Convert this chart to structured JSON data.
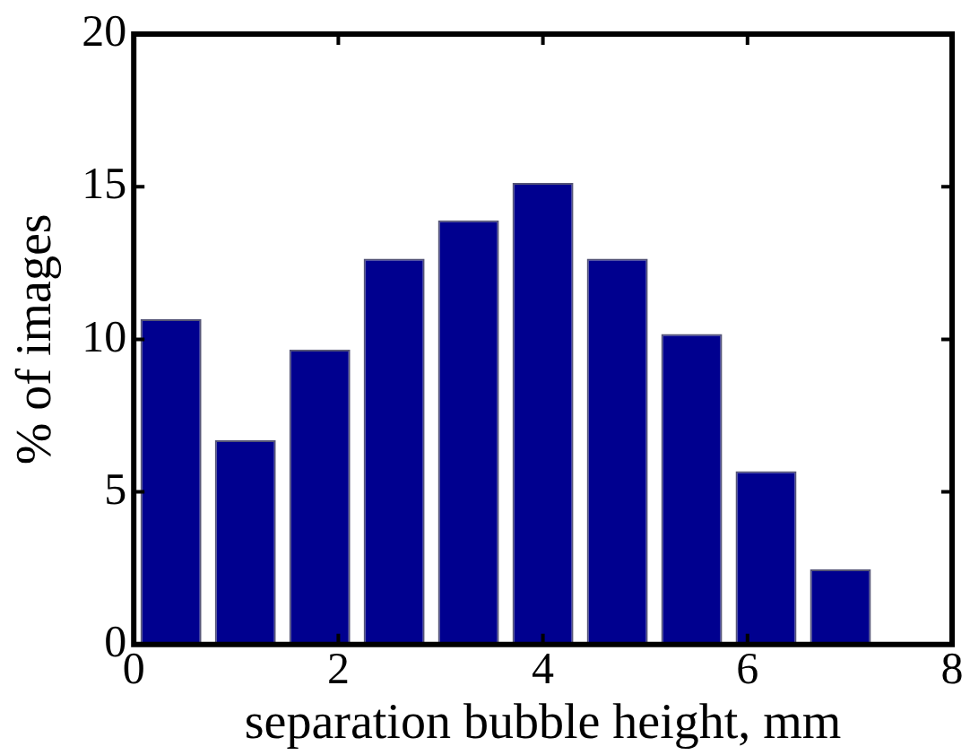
{
  "chart_data": {
    "type": "histogram",
    "xlabel": "separation bubble height, mm",
    "ylabel": "% of images",
    "bins": [
      0,
      0.727,
      1.455,
      2.182,
      2.909,
      3.636,
      4.364,
      5.091,
      5.818,
      6.545,
      7.273
    ],
    "values": [
      10.66,
      6.69,
      9.66,
      12.64,
      13.9,
      15.12,
      12.64,
      10.17,
      5.68,
      2.46
    ],
    "color": "#00008f",
    "xlim": [
      0,
      8
    ],
    "xticks": [
      0,
      2,
      4,
      6,
      8
    ],
    "ylim": [
      0,
      20
    ],
    "yticks": [
      0,
      5,
      10,
      15,
      20
    ],
    "grid": false,
    "legend": false
  }
}
